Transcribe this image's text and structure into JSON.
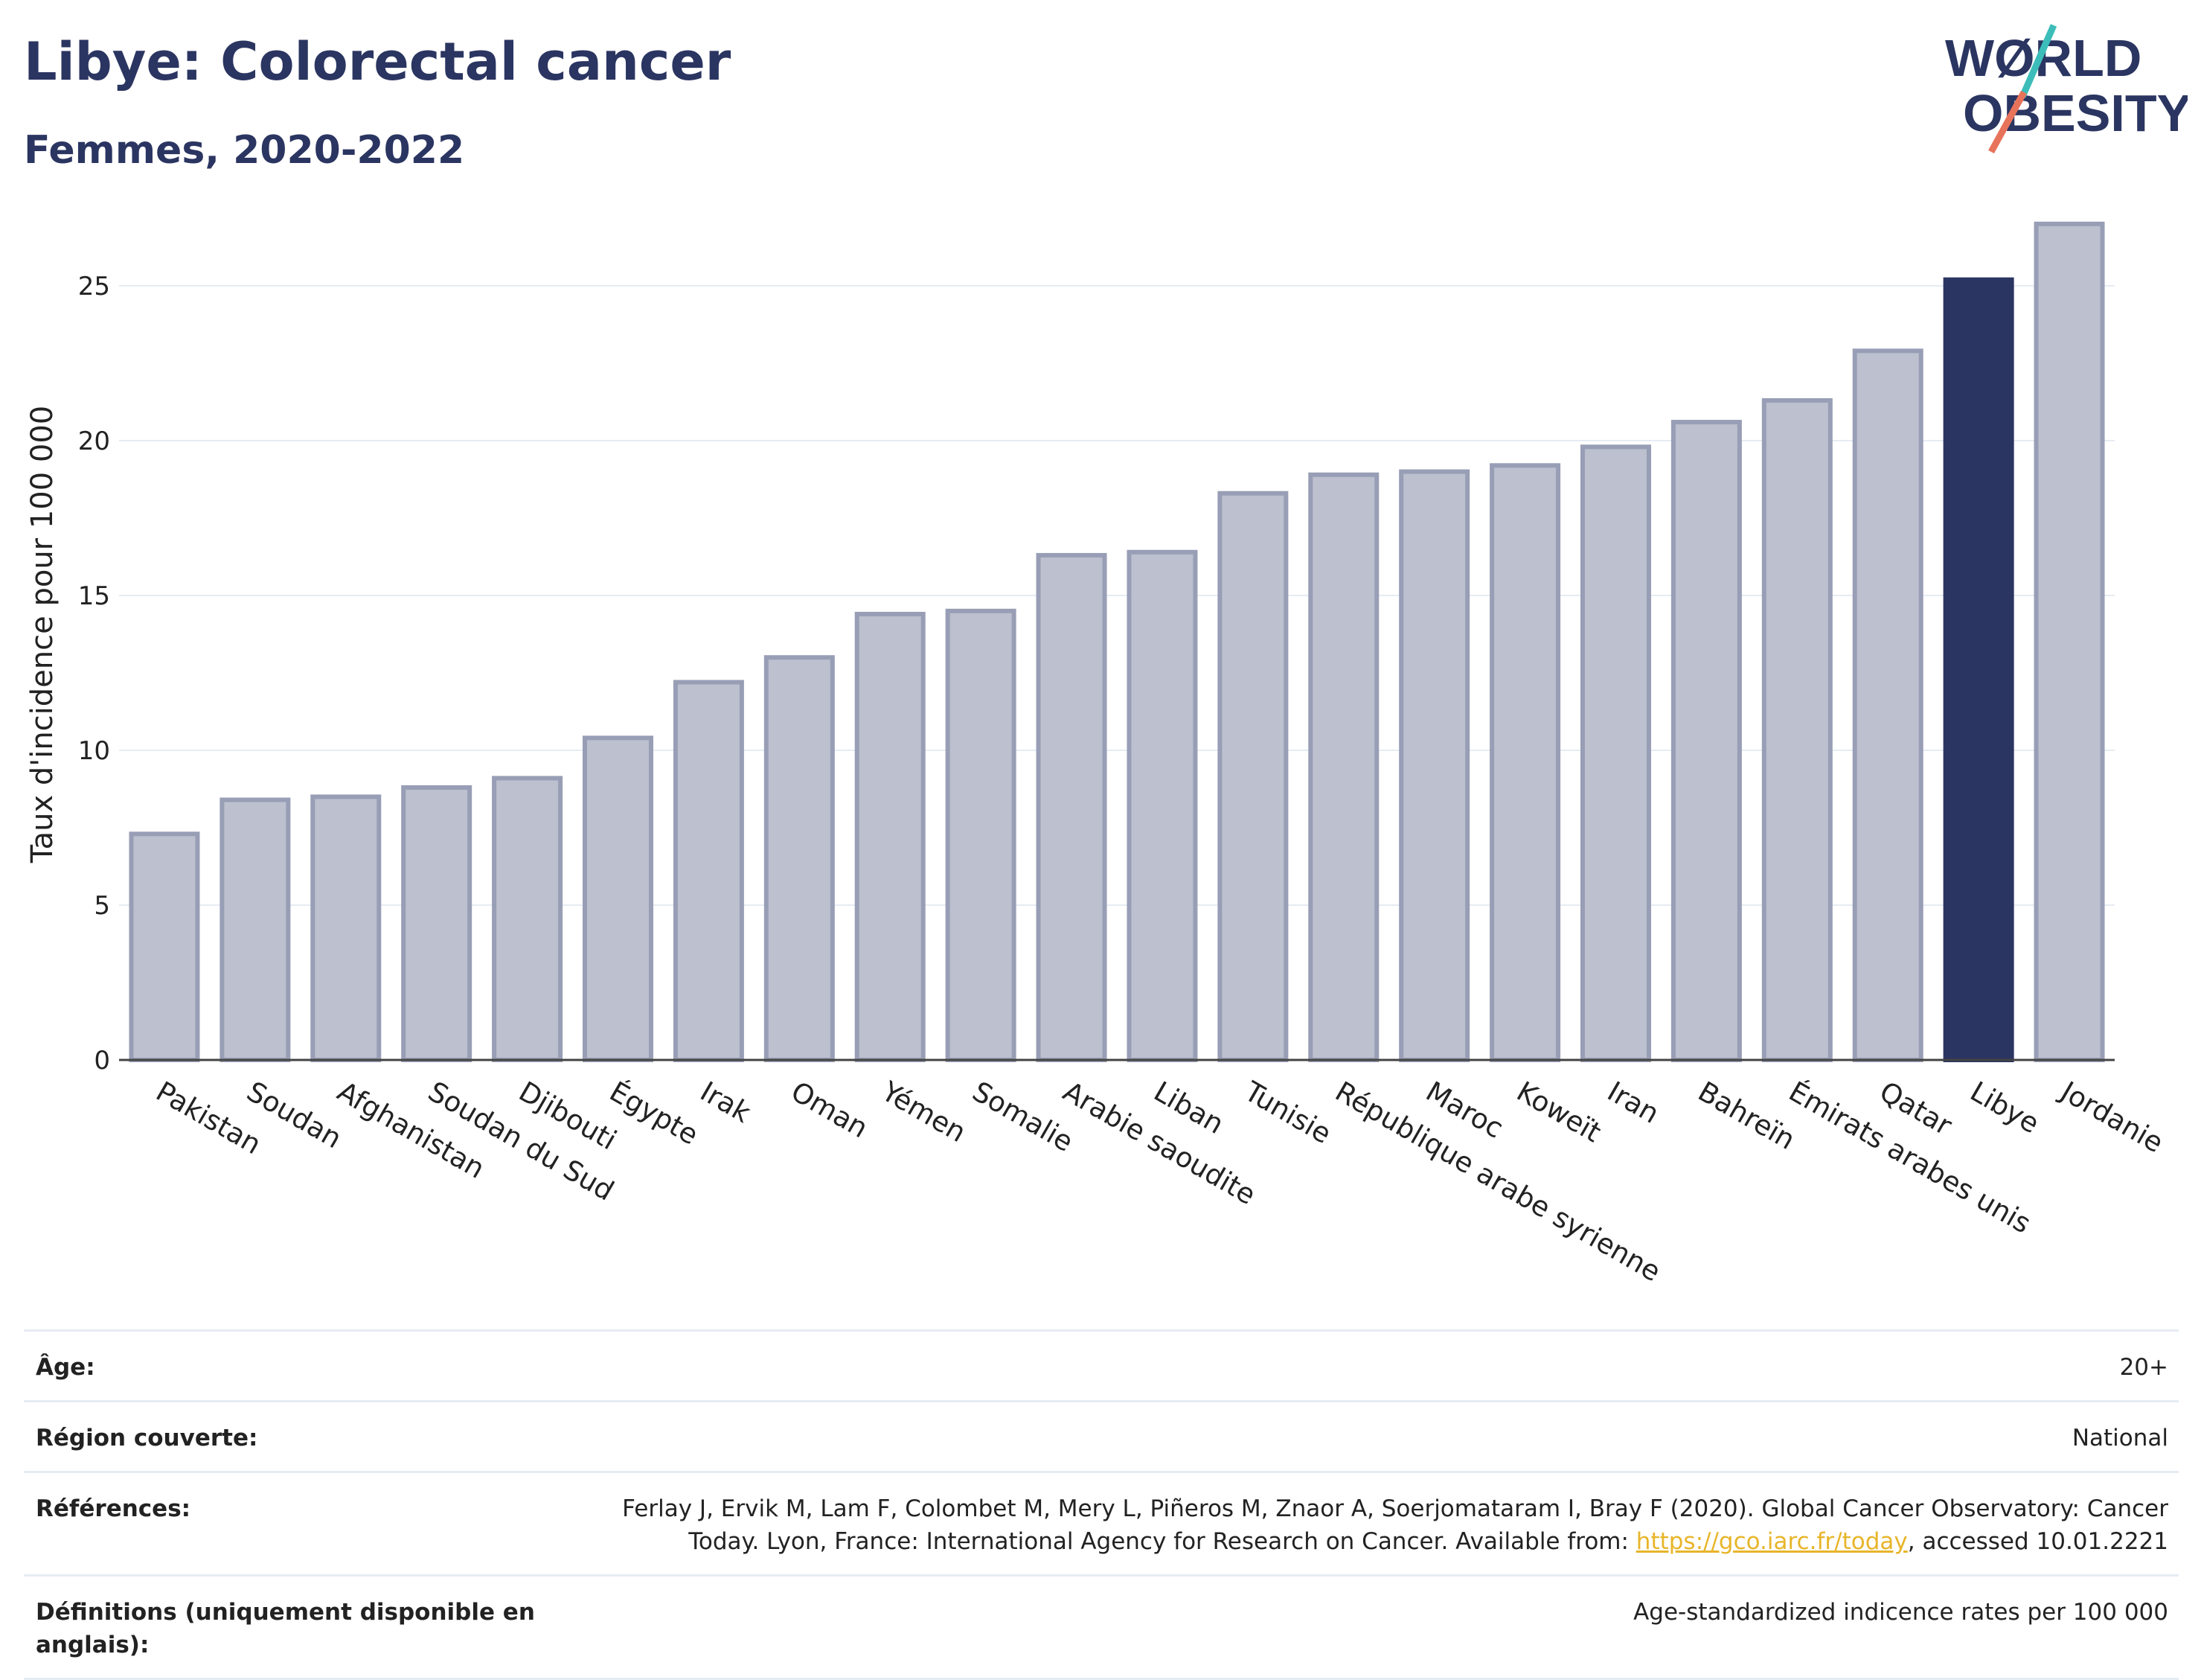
{
  "header": {
    "title": "Libye: Colorectal cancer",
    "subtitle": "Femmes, 2020-2022"
  },
  "logo": {
    "line1": "WØRLD",
    "line2": "OBESITY",
    "slash_colors": [
      "#3dbdb9",
      "#e8735b"
    ]
  },
  "colors": {
    "highlight": "#2b3561",
    "bar_fill": "#bcc0cf",
    "bar_stroke": "#989eb5",
    "grid": "#e6ecf3",
    "axis": "#444444"
  },
  "chart_data": {
    "type": "bar",
    "ylabel": "Taux d'incidence pour 100 000",
    "xlabel": "",
    "ylim": [
      0,
      27.5
    ],
    "yticks": [
      0,
      5,
      10,
      15,
      20,
      25
    ],
    "grid": true,
    "highlight": "Libye",
    "categories": [
      "Pakistan",
      "Soudan",
      "Afghanistan",
      "Soudan du Sud",
      "Djibouti",
      "Égypte",
      "Irak",
      "Oman",
      "Yémen",
      "Somalie",
      "Arabie saoudite",
      "Liban",
      "Tunisie",
      "République arabe syrienne",
      "Maroc",
      "Koweït",
      "Iran",
      "Bahreïn",
      "Émirats arabes unis",
      "Qatar",
      "Libye",
      "Jordanie"
    ],
    "values": [
      7.3,
      8.4,
      8.5,
      8.8,
      9.1,
      10.4,
      12.2,
      13.0,
      14.4,
      14.5,
      16.3,
      16.4,
      18.3,
      18.9,
      19.0,
      19.2,
      19.8,
      20.6,
      21.3,
      22.9,
      25.2,
      27.0
    ]
  },
  "meta": {
    "rows": [
      {
        "key": "Âge:",
        "value": "20+"
      },
      {
        "key": "Région couverte:",
        "value": "National"
      },
      {
        "key": "Références:",
        "value_before": "Ferlay J, Ervik M, Lam F, Colombet M, Mery L, Piñeros M, Znaor A, Soerjomataram I, Bray F (2020). Global Cancer Observatory: Cancer Today. Lyon, France: International Agency for Research on Cancer. Available from: ",
        "link": "https://gco.iarc.fr/today",
        "value_after": ", accessed 10.01.2221"
      },
      {
        "key": "Définitions (uniquement disponible en anglais):",
        "value": "Age-standardized indicence rates per 100 000"
      }
    ]
  }
}
